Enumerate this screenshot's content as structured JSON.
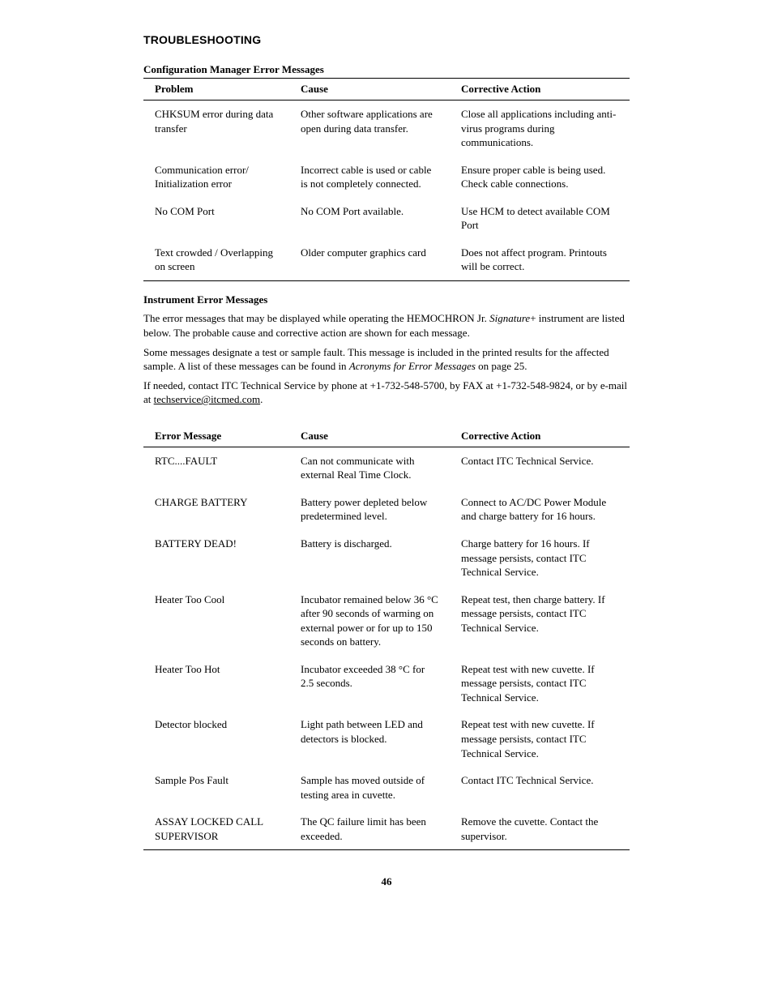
{
  "section_title": "TROUBLESHOOTING",
  "config_mgr": {
    "title": "Configuration Manager Error Messages",
    "headers": {
      "problem": "Problem",
      "cause": "Cause",
      "action": "Corrective Action"
    },
    "rows": [
      {
        "problem": "CHKSUM error during data transfer",
        "cause": "Other software applications are open during data transfer.",
        "action": "Close all applications including anti-virus programs during communications."
      },
      {
        "problem": "Communication error/ Initialization error",
        "cause": "Incorrect cable is used or cable is not completely connected.",
        "action": "Ensure proper cable is being used.  Check cable connections."
      },
      {
        "problem": "No COM Port",
        "cause": "No COM Port available.",
        "action": "Use HCM to detect available COM Port"
      },
      {
        "problem": "Text crowded / Overlapping on screen",
        "cause": "Older computer graphics card",
        "action": "Does not affect program. Printouts will be correct."
      }
    ]
  },
  "instrument": {
    "title": "Instrument Error Messages",
    "intro": {
      "p1_a": "The  error messages that may be displayed while operating the HEMOCHRON Jr. ",
      "p1_b": "Signature",
      "p1_c": "+ instrument are listed below. The probable cause and corrective action are shown for each message.",
      "p2_a": "Some messages designate a test or sample fault. This message is included in the printed results for the affected sample. A list of these messages can be found in ",
      "p2_b": "Acronyms for Error Messages",
      "p2_c": " on page 25.",
      "p3_a": "If needed, contact ITC Technical Service by phone at +1-732-548-5700, by FAX at +1-732-548-9824, or by e-mail at ",
      "p3_b": "techservice@itcmed.com",
      "p3_c": "."
    },
    "headers": {
      "problem": "Error Message",
      "cause": "Cause",
      "action": "Corrective Action"
    },
    "rows": [
      {
        "problem": "RTC....FAULT",
        "cause": "Can not communicate with external Real Time Clock.",
        "action": "Contact ITC Technical Service."
      },
      {
        "problem": "CHARGE BATTERY",
        "cause": "Battery power depleted below predetermined level.",
        "action": "Connect to AC/DC Power Module and charge battery for 16 hours."
      },
      {
        "problem": "BATTERY DEAD!",
        "cause": "Battery is discharged.",
        "action": "Charge battery for 16 hours. If message persists, contact ITC Technical Service."
      },
      {
        "problem": "Heater Too Cool",
        "cause": "Incubator remained below 36 °C after 90 seconds of warming on external power or for up to 150 seconds on battery.",
        "action": "Repeat test, then charge battery. If message persists, contact ITC Technical Service."
      },
      {
        "problem": "Heater Too Hot",
        "cause": "Incubator exceeded 38 °C for 2.5 seconds.",
        "action": "Repeat test with new cuvette. If message persists, contact ITC Technical Service."
      },
      {
        "problem": "Detector blocked",
        "cause": "Light path between LED and detectors is blocked.",
        "action": "Repeat test with new cuvette. If message persists, contact ITC Technical Service."
      },
      {
        "problem": "Sample Pos Fault",
        "cause": "Sample has moved outside of testing area in cuvette.",
        "action": "Contact ITC Technical Service."
      },
      {
        "problem": "ASSAY LOCKED CALL SUPERVISOR",
        "cause": "The QC failure limit has been exceeded.",
        "action": "Remove the cuvette. Contact the supervisor."
      }
    ]
  },
  "page_number": "46"
}
